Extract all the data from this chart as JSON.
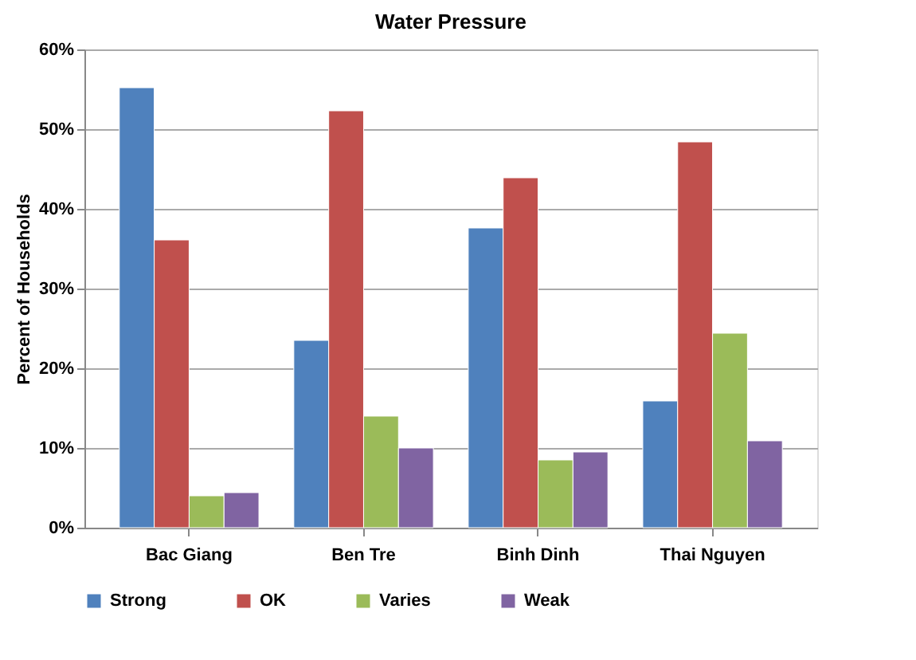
{
  "chart_data": {
    "type": "bar",
    "title": "Water Pressure",
    "ylabel": "Percent of Households",
    "categories": [
      "Bac Giang",
      "Ben Tre",
      "Binh Dinh",
      "Thai Nguyen"
    ],
    "series": [
      {
        "name": "Strong",
        "color": "#4f81bd",
        "values": [
          55.2,
          23.5,
          37.6,
          15.9
        ]
      },
      {
        "name": "OK",
        "color": "#c0504d",
        "values": [
          36.1,
          52.3,
          43.9,
          48.4
        ]
      },
      {
        "name": "Varies",
        "color": "#9bbb59",
        "values": [
          4.0,
          14.0,
          8.5,
          24.4
        ]
      },
      {
        "name": "Weak",
        "color": "#8064a2",
        "values": [
          4.4,
          10.0,
          9.5,
          10.9
        ]
      }
    ],
    "ylim": [
      0,
      60
    ],
    "yticks": [
      {
        "value": 0,
        "label": "0%"
      },
      {
        "value": 10,
        "label": "10%"
      },
      {
        "value": 20,
        "label": "20%"
      },
      {
        "value": 30,
        "label": "30%"
      },
      {
        "value": 40,
        "label": "40%"
      },
      {
        "value": 50,
        "label": "50%"
      },
      {
        "value": 60,
        "label": "60%"
      }
    ],
    "grid": "y",
    "legend": "bottom"
  }
}
